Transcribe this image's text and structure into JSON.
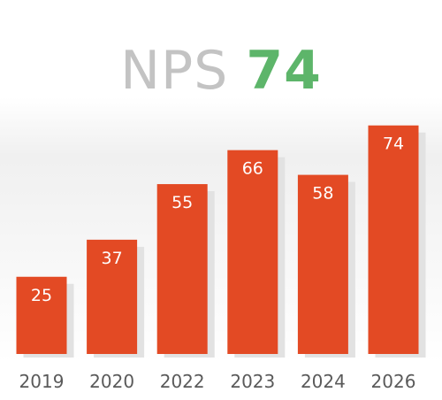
{
  "chart_data": {
    "type": "bar",
    "title_label": "NPS",
    "title_value": "74",
    "categories": [
      "2019",
      "2020",
      "2022",
      "2023",
      "2024",
      "2026"
    ],
    "values": [
      25,
      37,
      55,
      66,
      58,
      74
    ],
    "ylim": [
      0,
      100
    ],
    "xlabel": "",
    "ylabel": "",
    "grid": false,
    "legend": "none"
  },
  "colors": {
    "bar": "#e34a24",
    "title_label": "#c3c3c3",
    "title_value": "#5db56a",
    "tick_label": "#5a5a5a",
    "bar_label": "#ffffff"
  }
}
